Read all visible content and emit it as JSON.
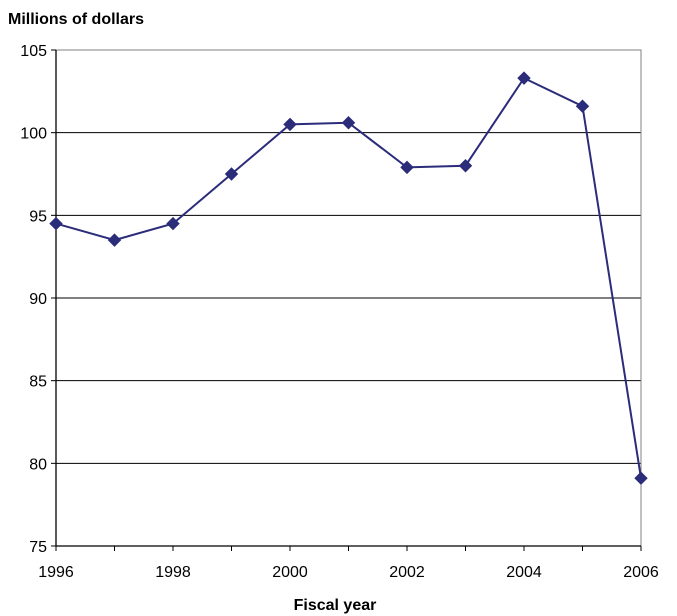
{
  "chart_data": {
    "type": "line",
    "title": "",
    "xlabel": "Fiscal year",
    "ylabel": "Millions of dollars",
    "xlim": [
      1996,
      2006
    ],
    "ylim": [
      75,
      105
    ],
    "x_ticks": [
      "1996",
      "1998",
      "2000",
      "2002",
      "2004",
      "2006"
    ],
    "y_ticks": [
      "75",
      "80",
      "85",
      "90",
      "95",
      "100",
      "105"
    ],
    "grid": "horizontal",
    "legend": "none",
    "series": [
      {
        "color": "#2b2c7a",
        "marker": "diamond",
        "x": [
          1996,
          1997,
          1998,
          1999,
          2000,
          2001,
          2002,
          2003,
          2004,
          2005,
          2006
        ],
        "values": [
          94.5,
          93.5,
          94.5,
          97.5,
          100.5,
          100.6,
          97.9,
          98.0,
          103.3,
          101.6,
          79.1
        ]
      }
    ]
  }
}
